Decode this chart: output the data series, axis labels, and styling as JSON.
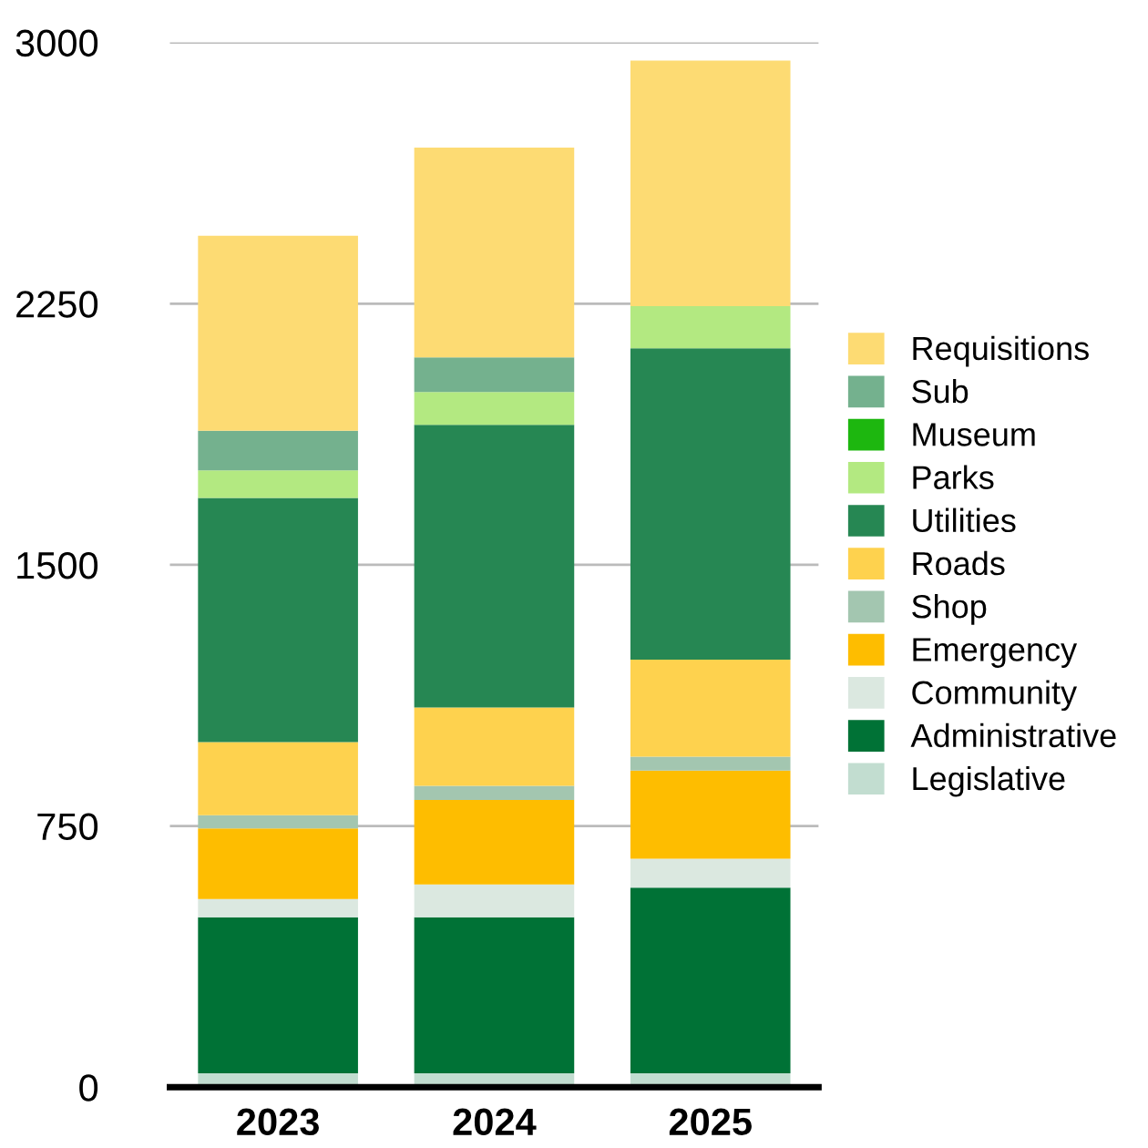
{
  "chart_data": {
    "type": "bar",
    "stacked": true,
    "categories": [
      "2023",
      "2024",
      "2025"
    ],
    "ylim": [
      0,
      3000
    ],
    "yticks": [
      0,
      750,
      1500,
      2250,
      3000
    ],
    "grid": "y",
    "legend": "right",
    "series": [
      {
        "name": "Legislative",
        "color": "#c2ddd0",
        "values": [
          40,
          40,
          40
        ]
      },
      {
        "name": "Administrative",
        "color": "#007236",
        "values": [
          448,
          448,
          533
        ]
      },
      {
        "name": "Community",
        "color": "#dbe8e0",
        "values": [
          52,
          94,
          83
        ]
      },
      {
        "name": "Emergency",
        "color": "#febd00",
        "values": [
          203,
          243,
          253
        ]
      },
      {
        "name": "Shop",
        "color": "#a3c6b0",
        "values": [
          38,
          40,
          40
        ]
      },
      {
        "name": "Roads",
        "color": "#fed24e",
        "values": [
          210,
          225,
          279
        ]
      },
      {
        "name": "Utilities",
        "color": "#268753",
        "values": [
          701,
          812,
          894
        ]
      },
      {
        "name": "Parks",
        "color": "#b3e981",
        "values": [
          79,
          94,
          121
        ]
      },
      {
        "name": "Museum",
        "color": "#1db70f",
        "values": [
          0,
          0,
          0
        ]
      },
      {
        "name": "Sub",
        "color": "#74b18e",
        "values": [
          114,
          100,
          0
        ]
      },
      {
        "name": "Requisitions",
        "color": "#fddb73",
        "values": [
          560,
          602,
          705
        ]
      }
    ]
  }
}
